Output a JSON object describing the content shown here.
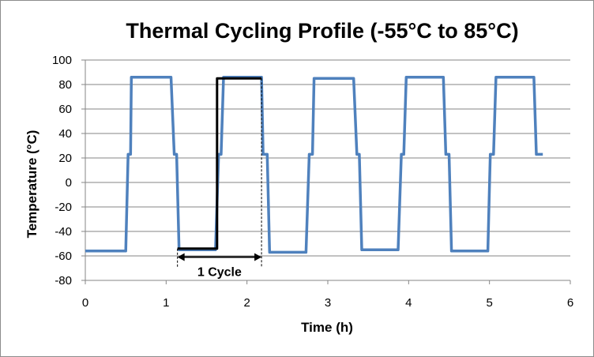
{
  "chart_data": {
    "type": "line",
    "title": "Thermal Cycling Profile (-55°C to 85°C)",
    "xlabel": "Time (h)",
    "ylabel": "Temperature (°C)",
    "xlim": [
      0,
      6
    ],
    "ylim": [
      -80,
      100
    ],
    "xticks": [
      "0",
      "1",
      "2",
      "3",
      "4",
      "5",
      "6"
    ],
    "yticks": [
      "100",
      "80",
      "60",
      "40",
      "20",
      "0",
      "-20",
      "-40",
      "-60",
      "-80"
    ],
    "grid": "horizontal",
    "legend": "none",
    "series": [
      {
        "color": "#4f81bd",
        "x": [
          0,
          0.5,
          0.53,
          0.56,
          0.57,
          1.06,
          1.1,
          1.13,
          1.16,
          1.61,
          1.65,
          1.68,
          1.71,
          2.18,
          2.2,
          2.25,
          2.28,
          2.73,
          2.77,
          2.81,
          2.83,
          3.32,
          3.36,
          3.39,
          3.42,
          3.87,
          3.91,
          3.94,
          3.97,
          4.43,
          4.46,
          4.5,
          4.53,
          4.98,
          5.01,
          5.05,
          5.08,
          5.55,
          5.58,
          5.61,
          5.66
        ],
        "y": [
          -56,
          -56,
          23,
          23,
          86,
          86,
          23,
          23,
          -55,
          -55,
          23,
          23,
          86,
          86,
          23,
          23,
          -57,
          -57,
          23,
          23,
          85,
          85,
          23,
          23,
          -55,
          -55,
          23,
          23,
          86,
          86,
          23,
          23,
          -56,
          -56,
          23,
          23,
          86,
          86,
          23,
          23,
          23
        ]
      },
      {
        "color": "#000000",
        "x": [
          1.14,
          1.63,
          1.63,
          2.18
        ],
        "y": [
          -54,
          -54,
          85,
          85
        ]
      }
    ],
    "annotations": [
      {
        "text": "1 Cycle",
        "x_start": 1.14,
        "x_end": 2.18
      }
    ]
  }
}
